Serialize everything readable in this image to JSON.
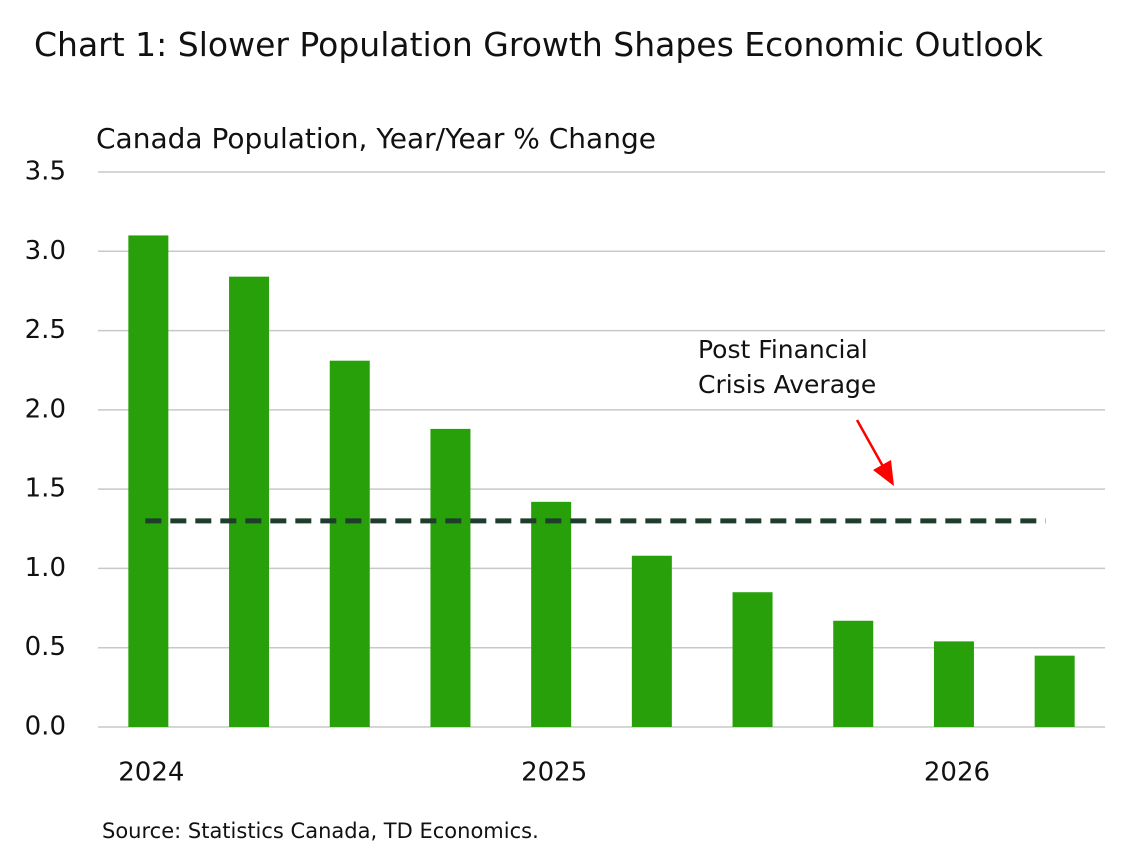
{
  "chart_data": {
    "type": "bar",
    "title": "Chart 1: Slower Population Growth Shapes Economic Outlook",
    "subtitle": "Canada Population, Year/Year % Change",
    "source": "Source: Statistics Canada, TD Economics.",
    "categories": [
      "2024",
      null,
      null,
      null,
      "2025",
      null,
      null,
      null,
      "2026",
      null
    ],
    "values": [
      3.1,
      2.84,
      2.31,
      1.88,
      1.42,
      1.08,
      0.85,
      0.67,
      0.54,
      0.45
    ],
    "color": "#27a009",
    "ylim": [
      0,
      3.5
    ],
    "yticks": [
      {
        "value": 0,
        "label": "0.0"
      },
      0.5,
      {
        "value": 1,
        "label": "1.0"
      },
      1.5,
      {
        "value": 2,
        "label": "2.0"
      },
      2.5,
      {
        "value": 3,
        "label": "3.0"
      },
      3.5
    ],
    "grid": true,
    "reference_line": {
      "value": 1.3,
      "color": "#1f3d2c"
    },
    "annotation": [
      "Post Financial",
      "Crisis Average"
    ]
  }
}
